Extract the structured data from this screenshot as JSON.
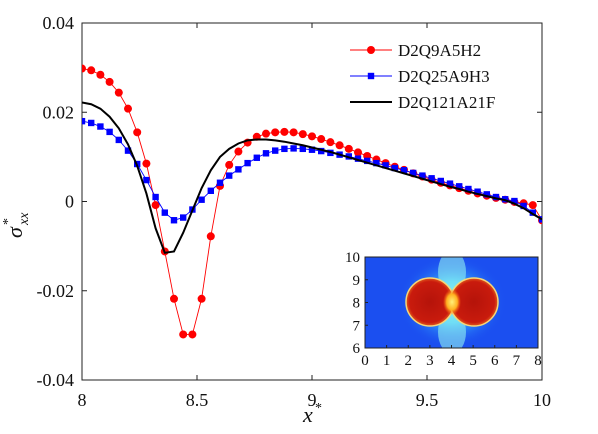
{
  "chart_data": {
    "type": "line",
    "xlabel": {
      "main": "x",
      "sup": "*"
    },
    "ylabel": {
      "main": "σ",
      "sup": "*",
      "sub": "xx"
    },
    "xlim": [
      8,
      10
    ],
    "ylim": [
      -0.04,
      0.04
    ],
    "xticks": [
      "8",
      "8.5",
      "9",
      "9.5",
      "10"
    ],
    "xtick_values": [
      8,
      8.5,
      9,
      9.5,
      10
    ],
    "yticks": [
      "0.04",
      "0.02",
      "0",
      "-0.02",
      "-0.04"
    ],
    "ytick_values": [
      0.04,
      0.02,
      0,
      -0.02,
      -0.04
    ],
    "grid": false,
    "legend_position": "top-right",
    "series": [
      {
        "name": "D2Q9A5H2",
        "color": "#ff0000",
        "marker": "circle",
        "line": "thin",
        "x": [
          8.0,
          8.04,
          8.08,
          8.12,
          8.16,
          8.2,
          8.24,
          8.28,
          8.32,
          8.36,
          8.4,
          8.44,
          8.48,
          8.52,
          8.56,
          8.6,
          8.64,
          8.68,
          8.72,
          8.76,
          8.8,
          8.84,
          8.88,
          8.92,
          8.96,
          9.0,
          9.04,
          9.08,
          9.12,
          9.16,
          9.2,
          9.24,
          9.28,
          9.32,
          9.36,
          9.4,
          9.44,
          9.48,
          9.52,
          9.56,
          9.6,
          9.64,
          9.68,
          9.72,
          9.76,
          9.8,
          9.84,
          9.88,
          9.92,
          9.96,
          10.0
        ],
        "y": [
          0.0298,
          0.0294,
          0.0284,
          0.0268,
          0.0244,
          0.0208,
          0.0155,
          0.0085,
          -0.0008,
          -0.0112,
          -0.0218,
          -0.0298,
          -0.0298,
          -0.0218,
          -0.0078,
          0.0035,
          0.0082,
          0.0112,
          0.0132,
          0.0145,
          0.0152,
          0.0155,
          0.0156,
          0.0155,
          0.0151,
          0.0146,
          0.014,
          0.0133,
          0.0126,
          0.0118,
          0.011,
          0.0102,
          0.0094,
          0.0086,
          0.0078,
          0.0071,
          0.0063,
          0.0056,
          0.0049,
          0.0042,
          0.0036,
          0.003,
          0.0024,
          0.0018,
          0.0013,
          0.0008,
          0.0004,
          -0.0001,
          -0.0004,
          -0.0008,
          -0.0042
        ]
      },
      {
        "name": "D2Q25A9H3",
        "color": "#0000ff",
        "marker": "square",
        "line": "thin",
        "x": [
          8.0,
          8.04,
          8.08,
          8.12,
          8.16,
          8.2,
          8.24,
          8.28,
          8.32,
          8.36,
          8.4,
          8.44,
          8.48,
          8.52,
          8.56,
          8.6,
          8.64,
          8.68,
          8.72,
          8.76,
          8.8,
          8.84,
          8.88,
          8.92,
          8.96,
          9.0,
          9.04,
          9.08,
          9.12,
          9.16,
          9.2,
          9.24,
          9.28,
          9.32,
          9.36,
          9.4,
          9.44,
          9.48,
          9.52,
          9.56,
          9.6,
          9.64,
          9.68,
          9.72,
          9.76,
          9.8,
          9.84,
          9.88,
          9.92,
          9.96,
          10.0
        ],
        "y": [
          0.018,
          0.0176,
          0.0168,
          0.0156,
          0.0138,
          0.0114,
          0.0084,
          0.0048,
          0.001,
          -0.0025,
          -0.0042,
          -0.0036,
          -0.0018,
          0.0004,
          0.0024,
          0.0042,
          0.0058,
          0.0072,
          0.0086,
          0.0098,
          0.0108,
          0.0114,
          0.0118,
          0.0119,
          0.0118,
          0.0116,
          0.0113,
          0.0109,
          0.0105,
          0.0101,
          0.0096,
          0.0091,
          0.0086,
          0.0081,
          0.0075,
          0.007,
          0.0064,
          0.0058,
          0.0052,
          0.0046,
          0.004,
          0.0034,
          0.0028,
          0.0022,
          0.0016,
          0.001,
          0.0005,
          0.0001,
          -0.001,
          -0.0025,
          -0.004
        ]
      },
      {
        "name": "D2Q121A21F",
        "color": "#000000",
        "marker": "none",
        "line": "solid",
        "x": [
          8.0,
          8.04,
          8.08,
          8.12,
          8.16,
          8.2,
          8.24,
          8.28,
          8.32,
          8.36,
          8.4,
          8.44,
          8.48,
          8.52,
          8.56,
          8.6,
          8.64,
          8.68,
          8.72,
          8.76,
          8.8,
          8.84,
          8.88,
          8.92,
          8.96,
          9.0,
          9.04,
          9.08,
          9.12,
          9.16,
          9.2,
          9.24,
          9.28,
          9.32,
          9.36,
          9.4,
          9.44,
          9.48,
          9.52,
          9.56,
          9.6,
          9.64,
          9.68,
          9.72,
          9.76,
          9.8,
          9.84,
          9.88,
          9.92,
          9.96,
          10.0
        ],
        "y": [
          0.0222,
          0.0218,
          0.0208,
          0.019,
          0.0164,
          0.0128,
          0.008,
          0.0018,
          -0.006,
          -0.0115,
          -0.0112,
          -0.007,
          -0.002,
          0.003,
          0.007,
          0.01,
          0.0118,
          0.013,
          0.0137,
          0.0139,
          0.0139,
          0.0137,
          0.0134,
          0.013,
          0.0126,
          0.0121,
          0.0116,
          0.0111,
          0.0105,
          0.0099,
          0.0093,
          0.0087,
          0.0081,
          0.0075,
          0.0069,
          0.0063,
          0.0057,
          0.0051,
          0.0045,
          0.0039,
          0.0033,
          0.0028,
          0.0022,
          0.0017,
          0.0012,
          0.0007,
          0.0003,
          -0.0005,
          -0.0015,
          -0.0028,
          -0.004
        ]
      }
    ],
    "inset": {
      "type": "heatmap",
      "xlim": [
        0,
        8
      ],
      "ylim": [
        6,
        10
      ],
      "xticks": [
        "0",
        "1",
        "2",
        "3",
        "4",
        "5",
        "6",
        "7",
        "8"
      ],
      "yticks": [
        "10",
        "9",
        "8",
        "7",
        "6"
      ],
      "colors": {
        "background": "#1b4ff0",
        "halo": "#3ec6ff",
        "glow": "#a8ff5a",
        "drop": "#c2160c",
        "edge": "#f7e27a",
        "neck": "#ffe14a"
      }
    }
  }
}
